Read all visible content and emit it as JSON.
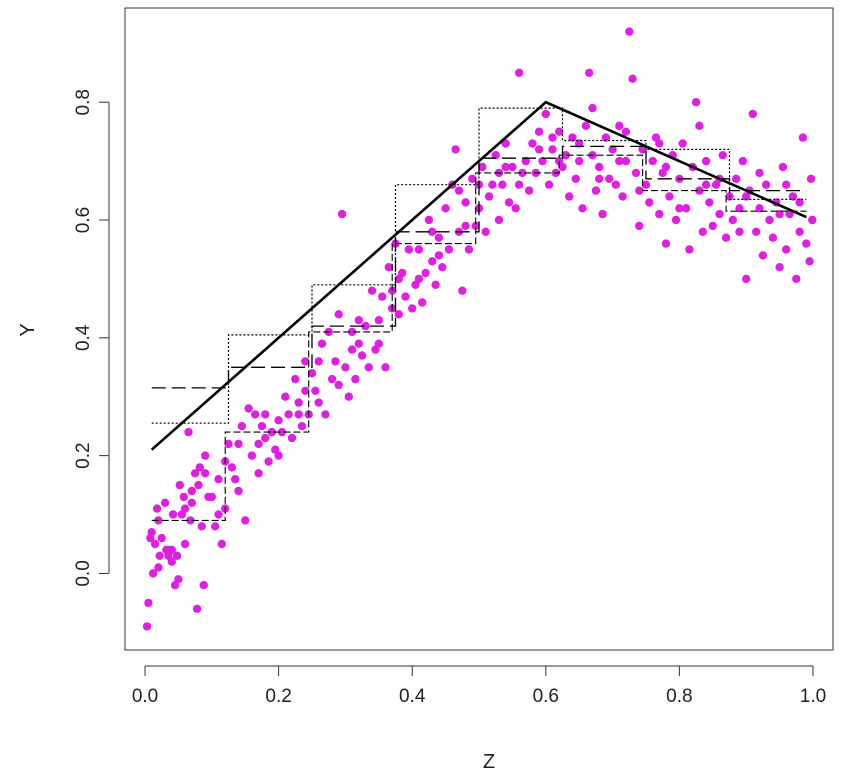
{
  "chart_data": {
    "type": "scatter",
    "title": "",
    "xlabel": "Z",
    "ylabel": "Y",
    "xlim": [
      -0.03,
      1.03
    ],
    "ylim": [
      -0.13,
      0.96
    ],
    "grid": false,
    "x_ticks": [
      {
        "value": 0.0,
        "label": "0.0"
      },
      {
        "value": 0.2,
        "label": "0.2"
      },
      {
        "value": 0.4,
        "label": "0.4"
      },
      {
        "value": 0.6,
        "label": "0.6"
      },
      {
        "value": 0.8,
        "label": "0.8"
      },
      {
        "value": 1.0,
        "label": "1.0"
      }
    ],
    "y_ticks": [
      {
        "value": 0.0,
        "label": "0.0"
      },
      {
        "value": 0.2,
        "label": "0.2"
      },
      {
        "value": 0.4,
        "label": "0.4"
      },
      {
        "value": 0.6,
        "label": "0.6"
      },
      {
        "value": 0.8,
        "label": "0.8"
      }
    ],
    "point_color": "#e020e0",
    "line_color": "#000000",
    "scatter_points": [
      [
        0.003,
        -0.09
      ],
      [
        0.005,
        -0.05
      ],
      [
        0.008,
        0.06
      ],
      [
        0.01,
        0.07
      ],
      [
        0.012,
        0.0
      ],
      [
        0.015,
        0.05
      ],
      [
        0.018,
        0.11
      ],
      [
        0.02,
        0.09
      ],
      [
        0.022,
        0.03
      ],
      [
        0.025,
        0.06
      ],
      [
        0.03,
        0.12
      ],
      [
        0.032,
        0.04
      ],
      [
        0.035,
        0.03
      ],
      [
        0.038,
        0.04
      ],
      [
        0.04,
        0.02
      ],
      [
        0.042,
        0.1
      ],
      [
        0.045,
        -0.02
      ],
      [
        0.048,
        0.03
      ],
      [
        0.05,
        -0.01
      ],
      [
        0.052,
        0.15
      ],
      [
        0.055,
        0.1
      ],
      [
        0.058,
        0.13
      ],
      [
        0.06,
        0.05
      ],
      [
        0.065,
        0.24
      ],
      [
        0.068,
        0.09
      ],
      [
        0.07,
        0.12
      ],
      [
        0.075,
        0.17
      ],
      [
        0.078,
        -0.06
      ],
      [
        0.08,
        0.15
      ],
      [
        0.082,
        0.18
      ],
      [
        0.085,
        0.08
      ],
      [
        0.088,
        -0.02
      ],
      [
        0.09,
        0.2
      ],
      [
        0.095,
        0.13
      ],
      [
        0.1,
        0.13
      ],
      [
        0.105,
        0.08
      ],
      [
        0.11,
        0.16
      ],
      [
        0.115,
        0.05
      ],
      [
        0.12,
        0.11
      ],
      [
        0.125,
        0.22
      ],
      [
        0.13,
        0.18
      ],
      [
        0.135,
        0.16
      ],
      [
        0.14,
        0.14
      ],
      [
        0.145,
        0.25
      ],
      [
        0.15,
        0.09
      ],
      [
        0.155,
        0.28
      ],
      [
        0.16,
        0.2
      ],
      [
        0.165,
        0.27
      ],
      [
        0.17,
        0.22
      ],
      [
        0.175,
        0.25
      ],
      [
        0.18,
        0.27
      ],
      [
        0.185,
        0.19
      ],
      [
        0.19,
        0.24
      ],
      [
        0.195,
        0.21
      ],
      [
        0.2,
        0.26
      ],
      [
        0.205,
        0.24
      ],
      [
        0.21,
        0.3
      ],
      [
        0.215,
        0.27
      ],
      [
        0.22,
        0.23
      ],
      [
        0.225,
        0.33
      ],
      [
        0.23,
        0.29
      ],
      [
        0.235,
        0.25
      ],
      [
        0.24,
        0.36
      ],
      [
        0.245,
        0.27
      ],
      [
        0.25,
        0.34
      ],
      [
        0.255,
        0.31
      ],
      [
        0.26,
        0.29
      ],
      [
        0.265,
        0.39
      ],
      [
        0.27,
        0.27
      ],
      [
        0.275,
        0.41
      ],
      [
        0.28,
        0.33
      ],
      [
        0.285,
        0.36
      ],
      [
        0.29,
        0.44
      ],
      [
        0.295,
        0.61
      ],
      [
        0.3,
        0.35
      ],
      [
        0.305,
        0.3
      ],
      [
        0.31,
        0.38
      ],
      [
        0.315,
        0.33
      ],
      [
        0.32,
        0.43
      ],
      [
        0.325,
        0.37
      ],
      [
        0.33,
        0.42
      ],
      [
        0.335,
        0.35
      ],
      [
        0.34,
        0.48
      ],
      [
        0.345,
        0.38
      ],
      [
        0.35,
        0.43
      ],
      [
        0.355,
        0.47
      ],
      [
        0.36,
        0.35
      ],
      [
        0.365,
        0.52
      ],
      [
        0.37,
        0.48
      ],
      [
        0.375,
        0.56
      ],
      [
        0.38,
        0.44
      ],
      [
        0.385,
        0.51
      ],
      [
        0.39,
        0.47
      ],
      [
        0.395,
        0.55
      ],
      [
        0.4,
        0.45
      ],
      [
        0.405,
        0.49
      ],
      [
        0.41,
        0.55
      ],
      [
        0.415,
        0.46
      ],
      [
        0.42,
        0.51
      ],
      [
        0.425,
        0.6
      ],
      [
        0.43,
        0.53
      ],
      [
        0.435,
        0.49
      ],
      [
        0.44,
        0.57
      ],
      [
        0.445,
        0.52
      ],
      [
        0.45,
        0.62
      ],
      [
        0.455,
        0.55
      ],
      [
        0.46,
        0.66
      ],
      [
        0.465,
        0.72
      ],
      [
        0.47,
        0.58
      ],
      [
        0.475,
        0.48
      ],
      [
        0.48,
        0.63
      ],
      [
        0.485,
        0.55
      ],
      [
        0.49,
        0.67
      ],
      [
        0.495,
        0.59
      ],
      [
        0.5,
        0.62
      ],
      [
        0.505,
        0.69
      ],
      [
        0.51,
        0.58
      ],
      [
        0.515,
        0.64
      ],
      [
        0.52,
        0.66
      ],
      [
        0.525,
        0.71
      ],
      [
        0.53,
        0.6
      ],
      [
        0.535,
        0.66
      ],
      [
        0.54,
        0.73
      ],
      [
        0.545,
        0.63
      ],
      [
        0.55,
        0.69
      ],
      [
        0.555,
        0.62
      ],
      [
        0.56,
        0.85
      ],
      [
        0.565,
        0.68
      ],
      [
        0.57,
        0.7
      ],
      [
        0.575,
        0.65
      ],
      [
        0.58,
        0.73
      ],
      [
        0.585,
        0.68
      ],
      [
        0.59,
        0.75
      ],
      [
        0.595,
        0.7
      ],
      [
        0.6,
        0.78
      ],
      [
        0.605,
        0.66
      ],
      [
        0.61,
        0.72
      ],
      [
        0.615,
        0.68
      ],
      [
        0.62,
        0.75
      ],
      [
        0.625,
        0.69
      ],
      [
        0.63,
        0.71
      ],
      [
        0.635,
        0.64
      ],
      [
        0.64,
        0.74
      ],
      [
        0.645,
        0.67
      ],
      [
        0.65,
        0.7
      ],
      [
        0.655,
        0.62
      ],
      [
        0.66,
        0.76
      ],
      [
        0.665,
        0.85
      ],
      [
        0.67,
        0.71
      ],
      [
        0.675,
        0.65
      ],
      [
        0.68,
        0.69
      ],
      [
        0.685,
        0.61
      ],
      [
        0.69,
        0.74
      ],
      [
        0.695,
        0.67
      ],
      [
        0.7,
        0.72
      ],
      [
        0.705,
        0.66
      ],
      [
        0.71,
        0.76
      ],
      [
        0.715,
        0.64
      ],
      [
        0.72,
        0.7
      ],
      [
        0.725,
        0.92
      ],
      [
        0.73,
        0.84
      ],
      [
        0.735,
        0.68
      ],
      [
        0.74,
        0.59
      ],
      [
        0.745,
        0.72
      ],
      [
        0.75,
        0.66
      ],
      [
        0.755,
        0.63
      ],
      [
        0.76,
        0.7
      ],
      [
        0.765,
        0.74
      ],
      [
        0.77,
        0.61
      ],
      [
        0.775,
        0.68
      ],
      [
        0.78,
        0.56
      ],
      [
        0.785,
        0.64
      ],
      [
        0.79,
        0.71
      ],
      [
        0.795,
        0.6
      ],
      [
        0.8,
        0.67
      ],
      [
        0.805,
        0.73
      ],
      [
        0.81,
        0.62
      ],
      [
        0.815,
        0.55
      ],
      [
        0.82,
        0.69
      ],
      [
        0.825,
        0.8
      ],
      [
        0.83,
        0.65
      ],
      [
        0.835,
        0.58
      ],
      [
        0.84,
        0.7
      ],
      [
        0.845,
        0.63
      ],
      [
        0.85,
        0.59
      ],
      [
        0.855,
        0.66
      ],
      [
        0.86,
        0.61
      ],
      [
        0.865,
        0.71
      ],
      [
        0.87,
        0.57
      ],
      [
        0.875,
        0.64
      ],
      [
        0.88,
        0.6
      ],
      [
        0.885,
        0.67
      ],
      [
        0.89,
        0.62
      ],
      [
        0.895,
        0.7
      ],
      [
        0.9,
        0.5
      ],
      [
        0.905,
        0.65
      ],
      [
        0.91,
        0.78
      ],
      [
        0.915,
        0.58
      ],
      [
        0.92,
        0.62
      ],
      [
        0.925,
        0.54
      ],
      [
        0.93,
        0.66
      ],
      [
        0.935,
        0.6
      ],
      [
        0.94,
        0.57
      ],
      [
        0.945,
        0.63
      ],
      [
        0.95,
        0.52
      ],
      [
        0.955,
        0.69
      ],
      [
        0.96,
        0.55
      ],
      [
        0.965,
        0.61
      ],
      [
        0.97,
        0.64
      ],
      [
        0.975,
        0.5
      ],
      [
        0.98,
        0.58
      ],
      [
        0.985,
        0.74
      ],
      [
        0.99,
        0.56
      ],
      [
        0.995,
        0.53
      ],
      [
        0.997,
        0.67
      ],
      [
        0.999,
        0.6
      ],
      [
        0.04,
        0.04
      ],
      [
        0.06,
        0.11
      ],
      [
        0.09,
        0.17
      ],
      [
        0.11,
        0.1
      ],
      [
        0.14,
        0.22
      ],
      [
        0.17,
        0.17
      ],
      [
        0.2,
        0.2
      ],
      [
        0.23,
        0.27
      ],
      [
        0.26,
        0.36
      ],
      [
        0.29,
        0.32
      ],
      [
        0.32,
        0.39
      ],
      [
        0.35,
        0.39
      ],
      [
        0.38,
        0.5
      ],
      [
        0.41,
        0.5
      ],
      [
        0.44,
        0.54
      ],
      [
        0.47,
        0.65
      ],
      [
        0.5,
        0.66
      ],
      [
        0.53,
        0.68
      ],
      [
        0.56,
        0.66
      ],
      [
        0.59,
        0.72
      ],
      [
        0.62,
        0.7
      ],
      [
        0.65,
        0.73
      ],
      [
        0.68,
        0.67
      ],
      [
        0.71,
        0.7
      ],
      [
        0.74,
        0.65
      ],
      [
        0.77,
        0.73
      ],
      [
        0.8,
        0.62
      ],
      [
        0.83,
        0.76
      ],
      [
        0.86,
        0.67
      ],
      [
        0.89,
        0.58
      ],
      [
        0.92,
        0.68
      ],
      [
        0.95,
        0.61
      ],
      [
        0.98,
        0.63
      ],
      [
        0.02,
        0.01
      ],
      [
        0.07,
        0.14
      ],
      [
        0.12,
        0.19
      ],
      [
        0.18,
        0.23
      ],
      [
        0.24,
        0.31
      ],
      [
        0.31,
        0.41
      ],
      [
        0.37,
        0.45
      ],
      [
        0.43,
        0.58
      ],
      [
        0.48,
        0.59
      ],
      [
        0.54,
        0.69
      ],
      [
        0.61,
        0.74
      ],
      [
        0.67,
        0.79
      ],
      [
        0.72,
        0.75
      ],
      [
        0.78,
        0.69
      ],
      [
        0.84,
        0.66
      ],
      [
        0.9,
        0.64
      ],
      [
        0.96,
        0.66
      ]
    ],
    "true_curve": [
      [
        0.01,
        0.21
      ],
      [
        0.6,
        0.8
      ],
      [
        0.99,
        0.605
      ]
    ],
    "step_dotted": [
      [
        0.01,
        0.255
      ],
      [
        0.125,
        0.255
      ],
      [
        0.125,
        0.405
      ],
      [
        0.25,
        0.405
      ],
      [
        0.25,
        0.49
      ],
      [
        0.375,
        0.49
      ],
      [
        0.375,
        0.66
      ],
      [
        0.5,
        0.66
      ],
      [
        0.5,
        0.79
      ],
      [
        0.625,
        0.79
      ],
      [
        0.625,
        0.735
      ],
      [
        0.75,
        0.735
      ],
      [
        0.75,
        0.72
      ],
      [
        0.875,
        0.72
      ],
      [
        0.875,
        0.635
      ],
      [
        0.99,
        0.635
      ]
    ],
    "step_dashed": [
      [
        0.01,
        0.315
      ],
      [
        0.125,
        0.315
      ],
      [
        0.125,
        0.35
      ],
      [
        0.25,
        0.35
      ],
      [
        0.25,
        0.42
      ],
      [
        0.375,
        0.42
      ],
      [
        0.375,
        0.58
      ],
      [
        0.5,
        0.58
      ],
      [
        0.5,
        0.705
      ],
      [
        0.625,
        0.705
      ],
      [
        0.625,
        0.725
      ],
      [
        0.75,
        0.725
      ],
      [
        0.75,
        0.67
      ],
      [
        0.875,
        0.67
      ],
      [
        0.875,
        0.65
      ],
      [
        0.99,
        0.65
      ]
    ],
    "step_fine_dashed": [
      [
        0.01,
        0.09
      ],
      [
        0.12,
        0.09
      ],
      [
        0.12,
        0.24
      ],
      [
        0.245,
        0.24
      ],
      [
        0.245,
        0.41
      ],
      [
        0.37,
        0.41
      ],
      [
        0.37,
        0.56
      ],
      [
        0.495,
        0.56
      ],
      [
        0.495,
        0.68
      ],
      [
        0.62,
        0.68
      ],
      [
        0.62,
        0.71
      ],
      [
        0.745,
        0.71
      ],
      [
        0.745,
        0.65
      ],
      [
        0.87,
        0.65
      ],
      [
        0.87,
        0.615
      ],
      [
        0.99,
        0.615
      ]
    ]
  }
}
